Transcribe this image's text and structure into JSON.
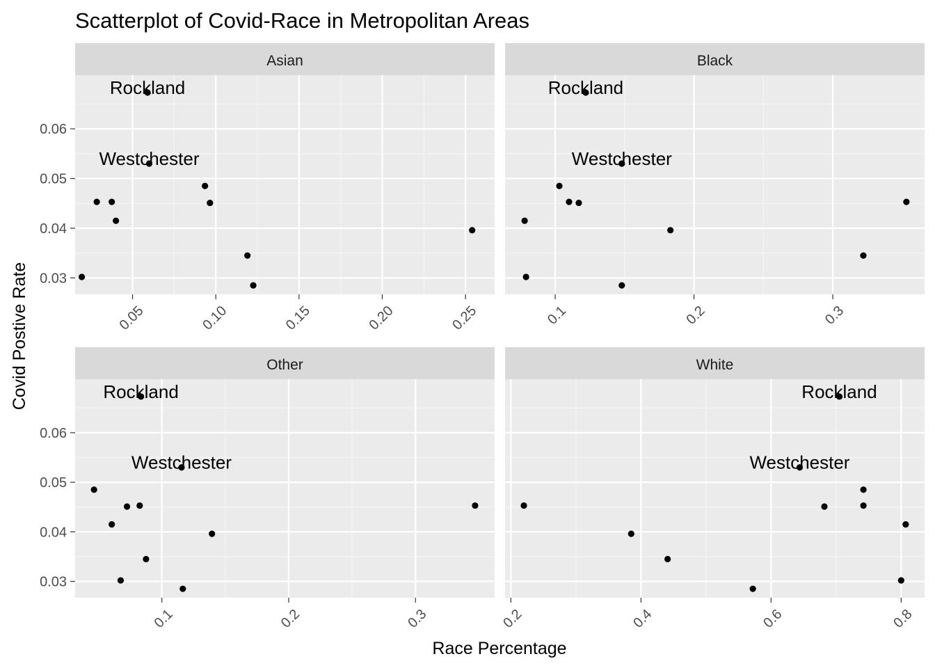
{
  "colors": {
    "panel_background": "#ebebeb",
    "strip_background": "#d9d9d9",
    "grid_major": "#ffffff",
    "grid_minor": "#f5f5f5",
    "point": "#000000",
    "tick_label": "#4d4d4d"
  },
  "chart_data": {
    "type": "scatter",
    "title": "Scatterplot of Covid-Race in Metropolitan Areas",
    "xlabel": "Race Percentage",
    "ylabel": "Covid Postive Rate",
    "facet_scales": "free_x",
    "grid": true,
    "y_axis": {
      "ticks": [
        0.03,
        0.04,
        0.05,
        0.06
      ],
      "tick_labels": [
        "0.03",
        "0.04",
        "0.05",
        "0.06"
      ],
      "ylim": [
        0.0267,
        0.0708
      ]
    },
    "panels": [
      {
        "name": "Asian",
        "x_axis": {
          "ticks": [
            0.05,
            0.1,
            0.15,
            0.2,
            0.25
          ],
          "tick_labels": [
            "0.05",
            "0.10",
            "0.15",
            "0.20",
            "0.25"
          ],
          "minor": [
            0.075,
            0.125,
            0.175,
            0.225
          ],
          "xlim": [
            0.0155,
            0.2675
          ]
        },
        "points": [
          {
            "x": 0.059,
            "y": 0.0673,
            "label": "Rockland"
          },
          {
            "x": 0.06,
            "y": 0.053,
            "label": "Westchester"
          },
          {
            "x": 0.0935,
            "y": 0.0485
          },
          {
            "x": 0.0285,
            "y": 0.0453
          },
          {
            "x": 0.0375,
            "y": 0.0453
          },
          {
            "x": 0.0965,
            "y": 0.0451
          },
          {
            "x": 0.04,
            "y": 0.0415
          },
          {
            "x": 0.254,
            "y": 0.0396
          },
          {
            "x": 0.119,
            "y": 0.0345
          },
          {
            "x": 0.0195,
            "y": 0.0302
          },
          {
            "x": 0.1225,
            "y": 0.0285
          }
        ]
      },
      {
        "name": "Black",
        "x_axis": {
          "ticks": [
            0.1,
            0.2,
            0.3
          ],
          "tick_labels": [
            "0.1",
            "0.2",
            "0.3"
          ],
          "minor": [
            0.15,
            0.25
          ],
          "xlim": [
            0.0639,
            0.3661
          ]
        },
        "points": [
          {
            "x": 0.122,
            "y": 0.0673,
            "label": "Rockland"
          },
          {
            "x": 0.148,
            "y": 0.053,
            "label": "Westchester"
          },
          {
            "x": 0.103,
            "y": 0.0485
          },
          {
            "x": 0.11,
            "y": 0.0453
          },
          {
            "x": 0.117,
            "y": 0.0451
          },
          {
            "x": 0.353,
            "y": 0.0453
          },
          {
            "x": 0.078,
            "y": 0.0415
          },
          {
            "x": 0.183,
            "y": 0.0396
          },
          {
            "x": 0.322,
            "y": 0.0345
          },
          {
            "x": 0.079,
            "y": 0.0302
          },
          {
            "x": 0.148,
            "y": 0.0285
          }
        ]
      },
      {
        "name": "Other",
        "x_axis": {
          "ticks": [
            0.1,
            0.2,
            0.3
          ],
          "tick_labels": [
            "0.1",
            "0.2",
            "0.3"
          ],
          "minor": [
            0.15,
            0.25
          ],
          "xlim": [
            0.0316,
            0.3624
          ]
        },
        "points": [
          {
            "x": 0.0835,
            "y": 0.0673,
            "label": "Rockland"
          },
          {
            "x": 0.1155,
            "y": 0.053,
            "label": "Westchester"
          },
          {
            "x": 0.0465,
            "y": 0.0485
          },
          {
            "x": 0.0825,
            "y": 0.0453
          },
          {
            "x": 0.0725,
            "y": 0.0451
          },
          {
            "x": 0.347,
            "y": 0.0453
          },
          {
            "x": 0.0605,
            "y": 0.0415
          },
          {
            "x": 0.1395,
            "y": 0.0396
          },
          {
            "x": 0.0875,
            "y": 0.0345
          },
          {
            "x": 0.0675,
            "y": 0.0302
          },
          {
            "x": 0.1165,
            "y": 0.0285
          }
        ]
      },
      {
        "name": "White",
        "x_axis": {
          "ticks": [
            0.2,
            0.4,
            0.6,
            0.8
          ],
          "tick_labels": [
            "0.2",
            "0.4",
            "0.6",
            "0.8"
          ],
          "minor": [
            0.3,
            0.5,
            0.7
          ],
          "xlim": [
            0.1911,
            0.836
          ]
        },
        "points": [
          {
            "x": 0.705,
            "y": 0.0673,
            "label": "Rockland"
          },
          {
            "x": 0.644,
            "y": 0.053,
            "label": "Westchester"
          },
          {
            "x": 0.742,
            "y": 0.0485
          },
          {
            "x": 0.22,
            "y": 0.0453
          },
          {
            "x": 0.682,
            "y": 0.0451
          },
          {
            "x": 0.742,
            "y": 0.0453
          },
          {
            "x": 0.807,
            "y": 0.0415
          },
          {
            "x": 0.385,
            "y": 0.0396
          },
          {
            "x": 0.441,
            "y": 0.0345
          },
          {
            "x": 0.8,
            "y": 0.0302
          },
          {
            "x": 0.572,
            "y": 0.0285
          }
        ]
      }
    ]
  }
}
